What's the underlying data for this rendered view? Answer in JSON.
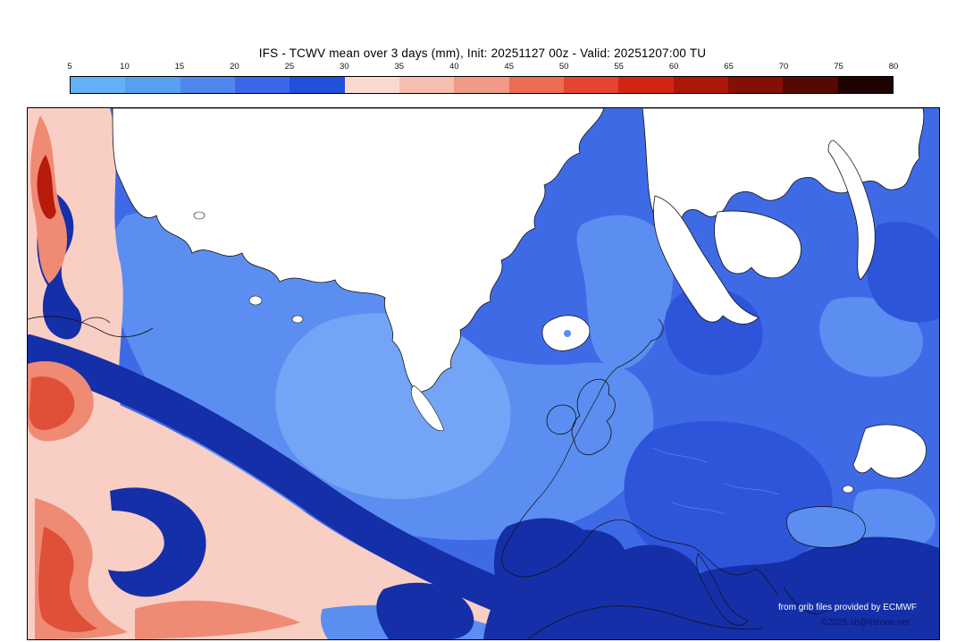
{
  "header": {
    "title": "IFS - TCWV mean over 3 days (mm), Init: 20251127 00z - Valid: 20251207:00 TU"
  },
  "colorbar": {
    "unit": "mm",
    "ticks": [
      "5",
      "10",
      "15",
      "20",
      "25",
      "30",
      "35",
      "40",
      "45",
      "50",
      "55",
      "60",
      "65",
      "70",
      "75",
      "80"
    ],
    "segments": [
      {
        "from": 5,
        "to": 10,
        "color": "#62b0f6"
      },
      {
        "from": 10,
        "to": 15,
        "color": "#55a0f2"
      },
      {
        "from": 15,
        "to": 20,
        "color": "#4f86ee"
      },
      {
        "from": 20,
        "to": 25,
        "color": "#3c66e8"
      },
      {
        "from": 25,
        "to": 30,
        "color": "#2050dc"
      },
      {
        "from": 30,
        "to": 35,
        "color": "#fbd9d1"
      },
      {
        "from": 35,
        "to": 40,
        "color": "#f7beb2"
      },
      {
        "from": 40,
        "to": 45,
        "color": "#f29a88"
      },
      {
        "from": 45,
        "to": 50,
        "color": "#ec6c54"
      },
      {
        "from": 50,
        "to": 55,
        "color": "#e44430"
      },
      {
        "from": 55,
        "to": 60,
        "color": "#d22614"
      },
      {
        "from": 60,
        "to": 65,
        "color": "#ac170a"
      },
      {
        "from": 65,
        "to": 70,
        "color": "#821005"
      },
      {
        "from": 70,
        "to": 75,
        "color": "#540a03"
      },
      {
        "from": 75,
        "to": 80,
        "color": "#1e0300"
      }
    ]
  },
  "map": {
    "attribution": "from grib files provided by ECMWF",
    "copyright": "©2025 sb@irizone.net",
    "palette": {
      "sea_mid_blue": "#3f6ae6",
      "sea_light_blue": "#5b8ef0",
      "sea_lighter_blue": "#74a4f6",
      "sea_dark_blue": "#2e54da",
      "sea_navy": "#142fa8",
      "pink_light": "#f9cec4",
      "red_mid": "#ef8a74",
      "red_deep": "#e05038",
      "red_core": "#b81a0c",
      "land_white": "#ffffff",
      "coastline": "#111111"
    }
  }
}
